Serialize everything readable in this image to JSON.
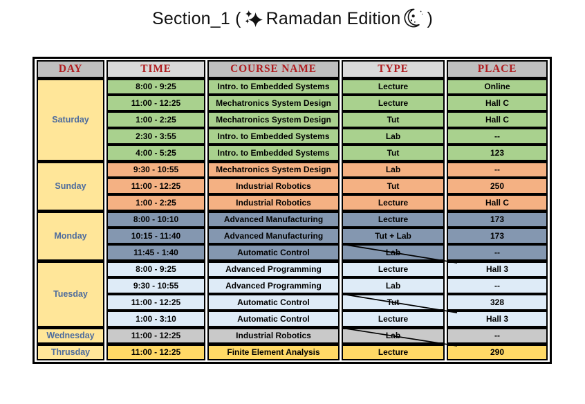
{
  "title": {
    "prefix": "Section_1 (",
    "middle": "Ramadan Edition",
    "suffix": ")",
    "icons": [
      "sparkles",
      "crescent-moon"
    ]
  },
  "colors": {
    "header_text": "#B01D20",
    "header_bg_dark": "#BFBFBF",
    "header_bg_light": "#D9D9D9",
    "day_cell_bg": "#FFE699",
    "day_text": "#4E6C9D",
    "saturday_bg": "#A9D18E",
    "sunday_bg": "#F4B183",
    "monday_bg": "#8497B0",
    "tuesday_bg": "#DEEBF7",
    "wednesday_bg": "#C9C9C9",
    "thursday_bg": "#FFD966"
  },
  "table": {
    "headers": [
      {
        "label": "DAY",
        "bg": "#BFBFBF"
      },
      {
        "label": "TIME",
        "bg": "#D9D9D9"
      },
      {
        "label": "COURSE NAME",
        "bg": "#BFBFBF"
      },
      {
        "label": "TYPE",
        "bg": "#D9D9D9"
      },
      {
        "label": "PLACE",
        "bg": "#BFBFBF"
      }
    ],
    "header_text_color": "#B01D20",
    "day_cell_bg": "#FFE699",
    "day_text_color": "#4E6C9D",
    "groups": [
      {
        "day": "Saturday",
        "row_bg": "#A9D18E",
        "rows": [
          {
            "time": "8:00 - 9:25",
            "course": "Intro. to Embedded Systems",
            "type": "Lecture",
            "place": "Online",
            "crossed": false
          },
          {
            "time": "11:00 - 12:25",
            "course": "Mechatronics System Design",
            "type": "Lecture",
            "place": "Hall C",
            "crossed": false
          },
          {
            "time": "1:00 - 2:25",
            "course": "Mechatronics System Design",
            "type": "Tut",
            "place": "Hall C",
            "crossed": false
          },
          {
            "time": "2:30 - 3:55",
            "course": "Intro. to Embedded Systems",
            "type": "Lab",
            "place": "--",
            "crossed": false
          },
          {
            "time": "4:00 - 5:25",
            "course": "Intro. to Embedded Systems",
            "type": "Tut",
            "place": "123",
            "crossed": false
          }
        ]
      },
      {
        "day": "Sunday",
        "row_bg": "#F4B183",
        "rows": [
          {
            "time": "9:30 - 10:55",
            "course": "Mechatronics System Design",
            "type": "Lab",
            "place": "--",
            "crossed": false
          },
          {
            "time": "11:00 - 12:25",
            "course": "Industrial Robotics",
            "type": "Tut",
            "place": "250",
            "crossed": false
          },
          {
            "time": "1:00 - 2:25",
            "course": "Industrial Robotics",
            "type": "Lecture",
            "place": "Hall C",
            "crossed": false
          }
        ]
      },
      {
        "day": "Monday",
        "row_bg": "#8497B0",
        "rows": [
          {
            "time": "8:00 - 10:10",
            "course": "Advanced Manufacturing",
            "type": "Lecture",
            "place": "173",
            "crossed": false
          },
          {
            "time": "10:15 - 11:40",
            "course": "Advanced Manufacturing",
            "type": "Tut + Lab",
            "place": "173",
            "crossed": false
          },
          {
            "time": "11:45 - 1:40",
            "course": "Automatic Control",
            "type": "Lab",
            "place": "--",
            "crossed": true
          }
        ]
      },
      {
        "day": "Tuesday",
        "row_bg": "#DEEBF7",
        "rows": [
          {
            "time": "8:00 - 9:25",
            "course": "Advanced Programming",
            "type": "Lecture",
            "place": "Hall 3",
            "crossed": false
          },
          {
            "time": "9:30 - 10:55",
            "course": "Advanced Programming",
            "type": "Lab",
            "place": "--",
            "crossed": false
          },
          {
            "time": "11:00 - 12:25",
            "course": "Automatic Control",
            "type": "Tut",
            "place": "328",
            "crossed": true
          },
          {
            "time": "1:00 - 3:10",
            "course": "Automatic Control",
            "type": "Lecture",
            "place": "Hall 3",
            "crossed": false
          }
        ]
      },
      {
        "day": "Wednesday",
        "row_bg": "#C9C9C9",
        "rows": [
          {
            "time": "11:00 - 12:25",
            "course": "Industrial Robotics",
            "type": "Lab",
            "place": "--",
            "crossed": true
          }
        ]
      },
      {
        "day": "Thrusday",
        "row_bg": "#FFD966",
        "rows": [
          {
            "time": "11:00 - 12:25",
            "course": "Finite Element Analysis",
            "type": "Lecture",
            "place": "290",
            "crossed": false
          }
        ]
      }
    ]
  }
}
